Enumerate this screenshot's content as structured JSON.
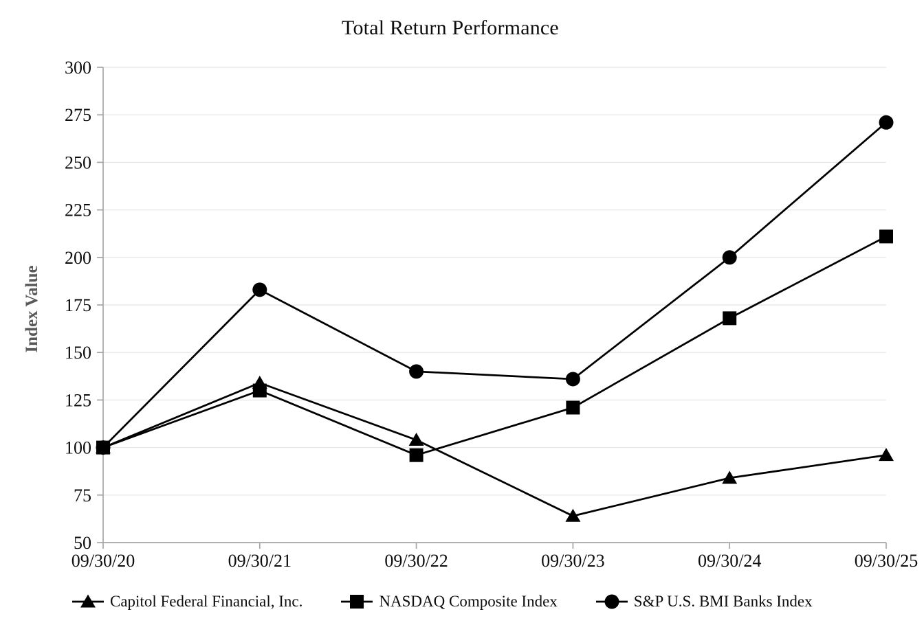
{
  "title": "Total Return Performance",
  "chart_data": {
    "type": "line",
    "title": "Total Return Performance",
    "xlabel": "",
    "ylabel": "Index Value",
    "x": [
      "09/30/20",
      "09/30/21",
      "09/30/22",
      "09/30/23",
      "09/30/24",
      "09/30/25"
    ],
    "ylim": [
      50,
      300
    ],
    "ytick_step": 25,
    "yticks": [
      50,
      75,
      100,
      125,
      150,
      175,
      200,
      225,
      250,
      275,
      300
    ],
    "grid": "horizontal-only",
    "legend_position": "bottom",
    "series": [
      {
        "name": "Capitol Federal Financial, Inc.",
        "marker": "triangle",
        "color": "#000000",
        "values": [
          100,
          134,
          104,
          64,
          84,
          96
        ]
      },
      {
        "name": "NASDAQ Composite Index",
        "marker": "square",
        "color": "#000000",
        "values": [
          100,
          130,
          96,
          121,
          168,
          211
        ]
      },
      {
        "name": "S&P U.S. BMI Banks Index",
        "marker": "circle",
        "color": "#000000",
        "values": [
          100,
          183,
          140,
          136,
          200,
          271
        ]
      }
    ]
  },
  "colors": {
    "series_line": "#000000",
    "axis_line": "#a6a6a6",
    "gridline": "#e8e8e8",
    "tick_label_text": "#0d0d0d",
    "y_axis_title_text": "#595959",
    "background": "#ffffff"
  }
}
